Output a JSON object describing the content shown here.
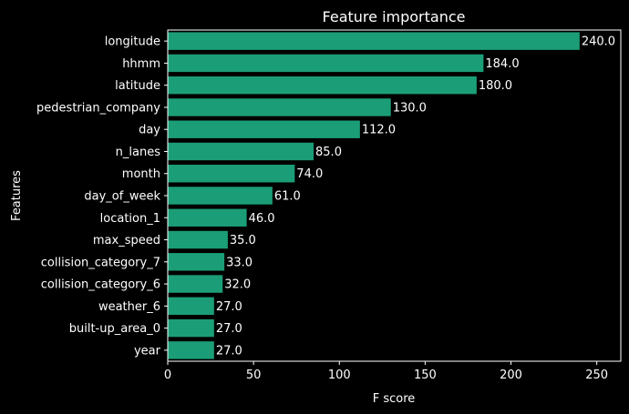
{
  "chart_data": {
    "type": "bar",
    "orientation": "horizontal",
    "title": "Feature importance",
    "xlabel": "F score",
    "ylabel": "Features",
    "xlim": [
      0,
      264
    ],
    "xticks": [
      0,
      50,
      100,
      150,
      200,
      250
    ],
    "grid": false,
    "categories": [
      "longitude",
      "hhmm",
      "latitude",
      "pedestrian_company",
      "day",
      "n_lanes",
      "month",
      "day_of_week",
      "location_1",
      "max_speed",
      "collision_category_7",
      "collision_category_6",
      "weather_6",
      "built-up_area_0",
      "year"
    ],
    "values": [
      240,
      184,
      180,
      130,
      112,
      85,
      74,
      61,
      46,
      35,
      33,
      32,
      27,
      27,
      27
    ],
    "value_labels": [
      "240.0",
      "184.0",
      "180.0",
      "130.0",
      "112.0",
      "85.0",
      "74.0",
      "61.0",
      "46.0",
      "35.0",
      "33.0",
      "32.0",
      "27.0",
      "27.0",
      "27.0"
    ],
    "bar_color": "#1b9e77",
    "background_color": "#000000",
    "axis_color": "#ffffff"
  }
}
